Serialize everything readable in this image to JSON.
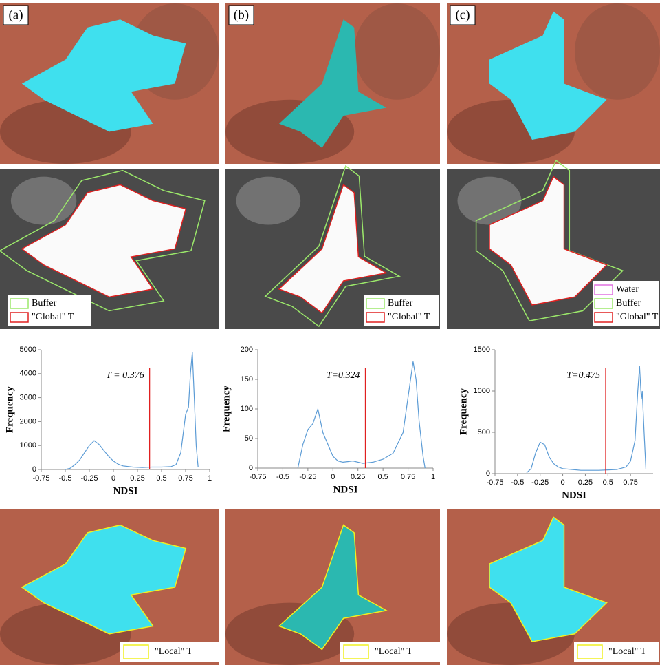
{
  "panels": [
    {
      "label": "(a)",
      "legend": [
        "Buffer",
        "\"Global\" T"
      ],
      "local_legend": "\"Local\" T"
    },
    {
      "label": "(b)",
      "legend": [
        "Buffer",
        "\"Global\" T"
      ],
      "local_legend": "\"Local\" T"
    },
    {
      "label": "(c)",
      "legend": [
        "Water",
        "Buffer",
        "\"Global\" T"
      ],
      "local_legend": "\"Local\" T"
    }
  ],
  "chart_data": [
    {
      "type": "line",
      "x_label": "NDSI",
      "y_label": "Frequency",
      "annotation": "T = 0.376",
      "threshold": 0.376,
      "threshold_color": "#e02020",
      "color": "#5b9bd5",
      "x": [
        -0.5,
        -0.45,
        -0.4,
        -0.35,
        -0.3,
        -0.25,
        -0.2,
        -0.15,
        -0.1,
        -0.05,
        0,
        0.05,
        0.1,
        0.2,
        0.3,
        0.4,
        0.5,
        0.6,
        0.65,
        0.7,
        0.75,
        0.78,
        0.8,
        0.82,
        0.84,
        0.86,
        0.88
      ],
      "values": [
        0,
        50,
        200,
        400,
        700,
        1000,
        1200,
        1050,
        800,
        550,
        350,
        220,
        150,
        100,
        80,
        100,
        100,
        120,
        200,
        700,
        2300,
        2600,
        4000,
        4900,
        3000,
        1000,
        100
      ],
      "xlim": [
        -0.75,
        1
      ],
      "xticks": [
        -0.75,
        -0.5,
        -0.25,
        0,
        0.25,
        0.5,
        0.75,
        1
      ],
      "ylim": [
        0,
        5000
      ],
      "yticks": [
        0,
        1000,
        2000,
        3000,
        4000,
        5000
      ]
    },
    {
      "type": "line",
      "x_label": "NDSI",
      "y_label": "Frequency",
      "annotation": "T=0.324",
      "threshold": 0.324,
      "threshold_color": "#e02020",
      "color": "#5b9bd5",
      "x": [
        -0.35,
        -0.3,
        -0.25,
        -0.2,
        -0.15,
        -0.1,
        -0.05,
        0,
        0.05,
        0.1,
        0.2,
        0.3,
        0.4,
        0.5,
        0.6,
        0.7,
        0.75,
        0.8,
        0.83,
        0.86,
        0.9,
        0.92
      ],
      "values": [
        0,
        40,
        65,
        75,
        100,
        60,
        40,
        20,
        12,
        10,
        12,
        8,
        10,
        15,
        25,
        60,
        120,
        180,
        150,
        80,
        20,
        0
      ],
      "xlim": [
        -0.75,
        1
      ],
      "xticks": [
        -0.75,
        -0.5,
        -0.25,
        0,
        0.25,
        0.5,
        0.75,
        1
      ],
      "ylim": [
        0,
        200
      ],
      "yticks": [
        0,
        50,
        100,
        150,
        200
      ]
    },
    {
      "type": "line",
      "x_label": "NDSI",
      "y_label": "Frequency",
      "annotation": "T=0.475",
      "threshold": 0.475,
      "threshold_color": "#e02020",
      "color": "#5b9bd5",
      "x": [
        -0.4,
        -0.35,
        -0.3,
        -0.25,
        -0.2,
        -0.15,
        -0.1,
        -0.05,
        0,
        0.1,
        0.2,
        0.3,
        0.4,
        0.5,
        0.6,
        0.7,
        0.75,
        0.8,
        0.83,
        0.85,
        0.87,
        0.88,
        0.9,
        0.92
      ],
      "values": [
        10,
        60,
        250,
        380,
        350,
        200,
        120,
        80,
        60,
        50,
        40,
        40,
        40,
        45,
        50,
        80,
        150,
        400,
        1000,
        1300,
        900,
        1000,
        500,
        50
      ],
      "xlim": [
        -0.75,
        1
      ],
      "xticks": [
        -0.75,
        -0.5,
        -0.25,
        0,
        0.25,
        0.5,
        0.75
      ],
      "ylim": [
        0,
        1500
      ],
      "yticks": [
        0,
        500,
        1000,
        1500
      ]
    }
  ]
}
